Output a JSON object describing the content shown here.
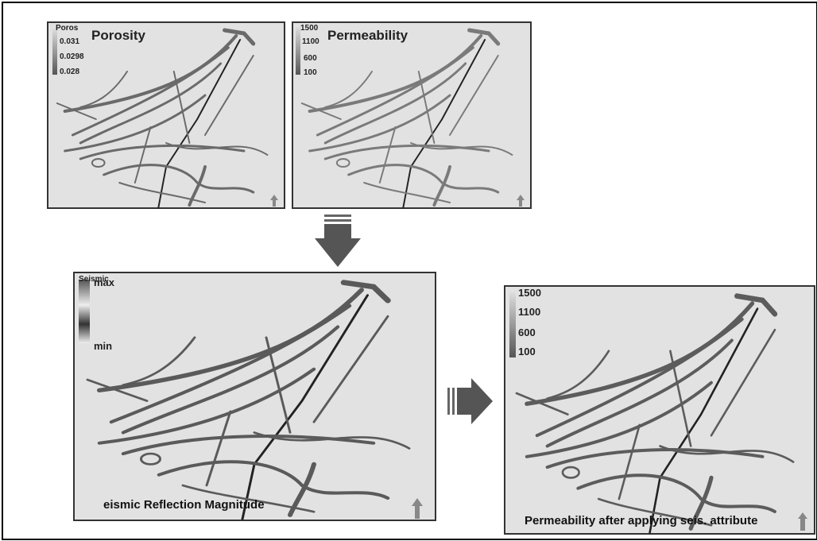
{
  "panels": [
    {
      "title": "Porosity",
      "legend_header": "Poros",
      "legend": [
        "0.031",
        "0.0298",
        "0.028"
      ]
    },
    {
      "title": "Permeability",
      "legend_header": "1500",
      "legend": [
        "1100",
        "600",
        "100"
      ]
    },
    {
      "title": "eismic Reflection Magnitude",
      "legend_header": "Seismic",
      "legend": [
        "max",
        "min"
      ]
    },
    {
      "title": "Permeability after applying seis. attribute",
      "legend_header": "1500",
      "legend": [
        "1100",
        "600",
        "100"
      ]
    }
  ]
}
